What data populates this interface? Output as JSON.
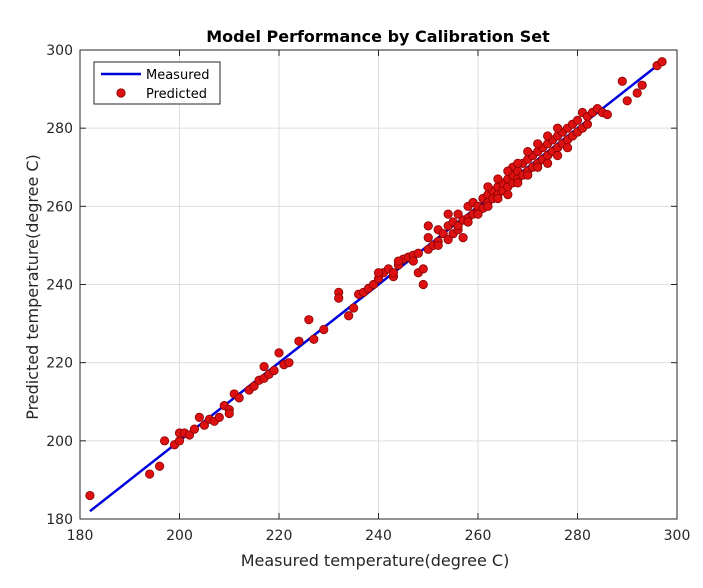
{
  "chart_data": {
    "type": "scatter",
    "title": "Model Performance by Calibration Set",
    "xlabel": "Measured temperature(degree C)",
    "ylabel": "Predicted temperature(degree C)",
    "xlim": [
      180,
      300
    ],
    "ylim": [
      180,
      300
    ],
    "xticks": [
      "180",
      "200",
      "220",
      "240",
      "260",
      "280",
      "300"
    ],
    "yticks": [
      "180",
      "200",
      "220",
      "240",
      "260",
      "280",
      "300"
    ],
    "grid": true,
    "legend_position": "top-left",
    "colors": {
      "line": "#0000dd",
      "marker": "#dd1111",
      "marker_edge": "#880000"
    },
    "series": [
      {
        "name": "Measured",
        "kind": "line",
        "x": [
          182,
          297
        ],
        "y": [
          182,
          297
        ]
      },
      {
        "name": "Predicted",
        "kind": "scatter",
        "points": [
          [
            182,
            186
          ],
          [
            194,
            191.5
          ],
          [
            196,
            193.5
          ],
          [
            197,
            200
          ],
          [
            199,
            199
          ],
          [
            200,
            200
          ],
          [
            200,
            202
          ],
          [
            201,
            202
          ],
          [
            202,
            201.5
          ],
          [
            203,
            203
          ],
          [
            204,
            206
          ],
          [
            205,
            204
          ],
          [
            206,
            205.5
          ],
          [
            207,
            205
          ],
          [
            208,
            206
          ],
          [
            209,
            209
          ],
          [
            210,
            208
          ],
          [
            210,
            207
          ],
          [
            211,
            212
          ],
          [
            212,
            211
          ],
          [
            214,
            213
          ],
          [
            215,
            214
          ],
          [
            216,
            215.5
          ],
          [
            217,
            219
          ],
          [
            217,
            216
          ],
          [
            218,
            217
          ],
          [
            219,
            218
          ],
          [
            220,
            222.5
          ],
          [
            221,
            219.5
          ],
          [
            222,
            220
          ],
          [
            224,
            225.5
          ],
          [
            226,
            231
          ],
          [
            227,
            226
          ],
          [
            229,
            228.5
          ],
          [
            232,
            238
          ],
          [
            232,
            236.5
          ],
          [
            234,
            232
          ],
          [
            235,
            234
          ],
          [
            236,
            237.5
          ],
          [
            237,
            238
          ],
          [
            238,
            239
          ],
          [
            239,
            240
          ],
          [
            240,
            241.5
          ],
          [
            241,
            243
          ],
          [
            242,
            244
          ],
          [
            243,
            242
          ],
          [
            243,
            243
          ],
          [
            244,
            245
          ],
          [
            245,
            246.5
          ],
          [
            246,
            247
          ],
          [
            247,
            247.5
          ],
          [
            247,
            246
          ],
          [
            248,
            243
          ],
          [
            249,
            240
          ],
          [
            249,
            244
          ],
          [
            250,
            249
          ],
          [
            250,
            255
          ],
          [
            251,
            250
          ],
          [
            252,
            251
          ],
          [
            252,
            254
          ],
          [
            253,
            253
          ],
          [
            254,
            251.5
          ],
          [
            254,
            255
          ],
          [
            255,
            253
          ],
          [
            255,
            256
          ],
          [
            256,
            254
          ],
          [
            256,
            255
          ],
          [
            257,
            256.5
          ],
          [
            257,
            252
          ],
          [
            258,
            260
          ],
          [
            258,
            257
          ],
          [
            259,
            258
          ],
          [
            259,
            261
          ],
          [
            260,
            259
          ],
          [
            260,
            260
          ],
          [
            261,
            259.5
          ],
          [
            261,
            262
          ],
          [
            262,
            261
          ],
          [
            262,
            263
          ],
          [
            263,
            262
          ],
          [
            263,
            264
          ],
          [
            264,
            263
          ],
          [
            264,
            265
          ],
          [
            265,
            264
          ],
          [
            265,
            266
          ],
          [
            266,
            265
          ],
          [
            266,
            267
          ],
          [
            267,
            266
          ],
          [
            267,
            268
          ],
          [
            267,
            270
          ],
          [
            268,
            267
          ],
          [
            268,
            269
          ],
          [
            269,
            268
          ],
          [
            269,
            271
          ],
          [
            270,
            269
          ],
          [
            270,
            272
          ],
          [
            271,
            270
          ],
          [
            271,
            273
          ],
          [
            272,
            271
          ],
          [
            272,
            274
          ],
          [
            273,
            272
          ],
          [
            273,
            275
          ],
          [
            274,
            273
          ],
          [
            274,
            276
          ],
          [
            275,
            274
          ],
          [
            275,
            277
          ],
          [
            276,
            275
          ],
          [
            276,
            278
          ],
          [
            277,
            276
          ],
          [
            277,
            279
          ],
          [
            278,
            277
          ],
          [
            278,
            280
          ],
          [
            279,
            278
          ],
          [
            279,
            281
          ],
          [
            280,
            279
          ],
          [
            280,
            282
          ],
          [
            281,
            284
          ],
          [
            281,
            280
          ],
          [
            282,
            283
          ],
          [
            282,
            281
          ],
          [
            283,
            284
          ],
          [
            284,
            285
          ],
          [
            285,
            284
          ],
          [
            286,
            283.5
          ],
          [
            289,
            292
          ],
          [
            290,
            287
          ],
          [
            292,
            289
          ],
          [
            293,
            291
          ],
          [
            296,
            296
          ],
          [
            297,
            297
          ],
          [
            240,
            243
          ],
          [
            244,
            246
          ],
          [
            248,
            248
          ],
          [
            250,
            252
          ],
          [
            252,
            250
          ],
          [
            254,
            258
          ],
          [
            256,
            258
          ],
          [
            258,
            256
          ],
          [
            260,
            258
          ],
          [
            262,
            260
          ],
          [
            264,
            262
          ],
          [
            266,
            263
          ],
          [
            268,
            266
          ],
          [
            270,
            268
          ],
          [
            272,
            270
          ],
          [
            274,
            271
          ],
          [
            276,
            273
          ],
          [
            278,
            275
          ],
          [
            262,
            265
          ],
          [
            264,
            267
          ],
          [
            266,
            269
          ],
          [
            268,
            271
          ],
          [
            270,
            274
          ],
          [
            272,
            276
          ],
          [
            274,
            278
          ],
          [
            276,
            280
          ]
        ]
      }
    ]
  }
}
